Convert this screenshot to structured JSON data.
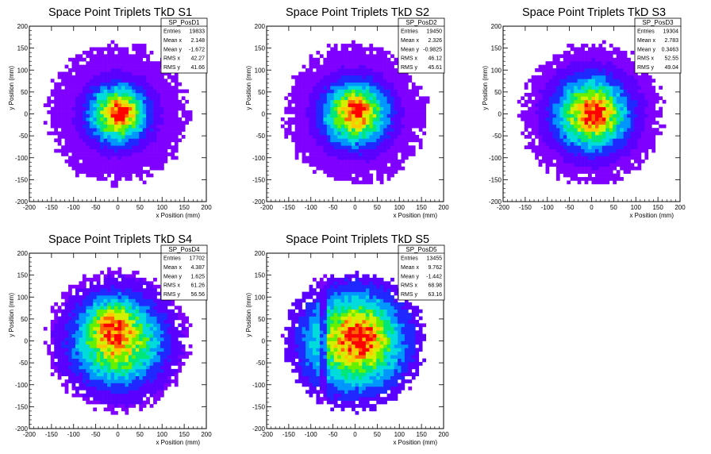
{
  "colors": {
    "palette": [
      "#7f00ff",
      "#5a00ff",
      "#1e28ff",
      "#0096ff",
      "#00dcdc",
      "#00e678",
      "#64f000",
      "#d2f000",
      "#ffc800",
      "#ff6400",
      "#ff0000"
    ],
    "background": "#ffffff",
    "frame": "#000000"
  },
  "chart_data": [
    {
      "type": "heatmap",
      "title": "Space Point Triplets TkD S1",
      "xlabel": "x Position (mm)",
      "ylabel": "y Position (mm)",
      "xlim": [
        -200,
        200
      ],
      "ylim": [
        -200,
        200
      ],
      "xticks": [
        "-200",
        "-150",
        "-100",
        "-50",
        "0",
        "50",
        "100",
        "150",
        "200"
      ],
      "yticks": [
        "-200",
        "-150",
        "-100",
        "-50",
        "0",
        "50",
        "100",
        "150",
        "200"
      ],
      "footprint_radius": 160,
      "core_sigma": 42,
      "hotspot": [
        10,
        5
      ],
      "stats": {
        "name": "SP_PosD1",
        "rows": [
          {
            "label": "Entries",
            "value": "19833"
          },
          {
            "label": "Mean x",
            "value": "2.148"
          },
          {
            "label": "Mean y",
            "value": "-1.672"
          },
          {
            "label": "RMS x",
            "value": "42.27"
          },
          {
            "label": "RMS y",
            "value": "41.66"
          }
        ]
      }
    },
    {
      "type": "heatmap",
      "title": "Space Point Triplets TkD S2",
      "xlabel": "x Position (mm)",
      "ylabel": "y Position (mm)",
      "xlim": [
        -200,
        200
      ],
      "ylim": [
        -200,
        200
      ],
      "xticks": [
        "-200",
        "-150",
        "-100",
        "-50",
        "0",
        "50",
        "100",
        "150",
        "200"
      ],
      "yticks": [
        "-200",
        "-150",
        "-100",
        "-50",
        "0",
        "50",
        "100",
        "150",
        "200"
      ],
      "footprint_radius": 160,
      "core_sigma": 46,
      "hotspot": [
        5,
        10
      ],
      "stats": {
        "name": "SP_PosD2",
        "rows": [
          {
            "label": "Entries",
            "value": "19450"
          },
          {
            "label": "Mean x",
            "value": "2.326"
          },
          {
            "label": "Mean y",
            "value": "-0.9825"
          },
          {
            "label": "RMS x",
            "value": "46.12"
          },
          {
            "label": "RMS y",
            "value": "45.61"
          }
        ]
      }
    },
    {
      "type": "heatmap",
      "title": "Space Point Triplets TkD S3",
      "xlabel": "x Position (mm)",
      "ylabel": "y Position (mm)",
      "xlim": [
        -200,
        200
      ],
      "ylim": [
        -200,
        200
      ],
      "xticks": [
        "-200",
        "-150",
        "-100",
        "-50",
        "0",
        "50",
        "100",
        "150",
        "200"
      ],
      "yticks": [
        "-200",
        "-150",
        "-100",
        "-50",
        "0",
        "50",
        "100",
        "150",
        "200"
      ],
      "footprint_radius": 160,
      "core_sigma": 52,
      "hotspot": [
        10,
        0
      ],
      "stats": {
        "name": "SP_PosD3",
        "rows": [
          {
            "label": "Entries",
            "value": "19304"
          },
          {
            "label": "Mean x",
            "value": "2.783"
          },
          {
            "label": "Mean y",
            "value": "0.3463"
          },
          {
            "label": "RMS x",
            "value": "52.55"
          },
          {
            "label": "RMS y",
            "value": "49.04"
          }
        ]
      }
    },
    {
      "type": "heatmap",
      "title": "Space Point Triplets TkD S4",
      "xlabel": "x Position (mm)",
      "ylabel": "y Position (mm)",
      "xlim": [
        -200,
        200
      ],
      "ylim": [
        -200,
        200
      ],
      "xticks": [
        "-200",
        "-150",
        "-100",
        "-50",
        "0",
        "50",
        "100",
        "150",
        "200"
      ],
      "yticks": [
        "-200",
        "-150",
        "-100",
        "-50",
        "0",
        "50",
        "100",
        "150",
        "200"
      ],
      "footprint_radius": 160,
      "core_sigma": 62,
      "hotspot": [
        -15,
        40
      ],
      "stats": {
        "name": "SP_PosD4",
        "rows": [
          {
            "label": "Entries",
            "value": "17702"
          },
          {
            "label": "Mean x",
            "value": "4.387"
          },
          {
            "label": "Mean y",
            "value": "1.625"
          },
          {
            "label": "RMS x",
            "value": "61.26"
          },
          {
            "label": "RMS y",
            "value": "56.56"
          }
        ]
      }
    },
    {
      "type": "heatmap",
      "title": "Space Point Triplets TkD S5",
      "xlabel": "x Position (mm)",
      "ylabel": "y Position (mm)",
      "xlim": [
        -200,
        200
      ],
      "ylim": [
        -200,
        200
      ],
      "xticks": [
        "-200",
        "-150",
        "-100",
        "-50",
        "0",
        "50",
        "100",
        "150",
        "200"
      ],
      "yticks": [
        "-200",
        "-150",
        "-100",
        "-50",
        "0",
        "50",
        "100",
        "150",
        "200"
      ],
      "footprint_radius": 160,
      "core_sigma": 70,
      "hotspot": [
        10,
        10
      ],
      "stats": {
        "name": "SP_PosD5",
        "rows": [
          {
            "label": "Entries",
            "value": "13455"
          },
          {
            "label": "Mean x",
            "value": "9.762"
          },
          {
            "label": "Mean y",
            "value": "-1.442"
          },
          {
            "label": "RMS x",
            "value": "68.98"
          },
          {
            "label": "RMS y",
            "value": "63.16"
          }
        ]
      }
    }
  ]
}
